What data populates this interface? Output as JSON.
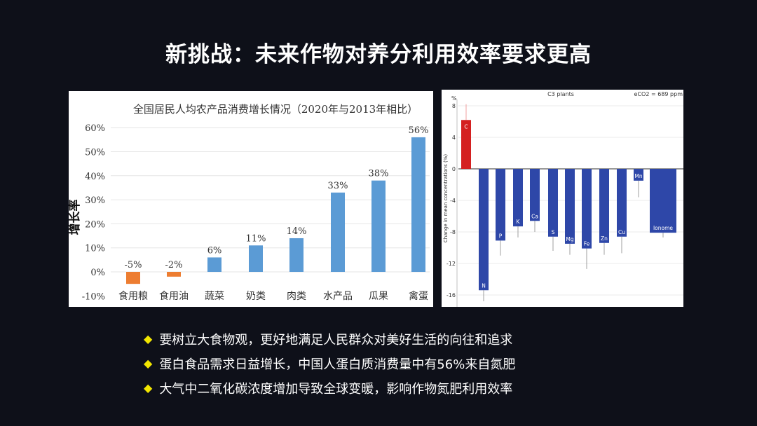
{
  "title": "新挑战：未来作物对养分利用效率要求更高",
  "chart_data": [
    {
      "type": "bar",
      "title": "全国居民人均农产品消费增长情况（2020年与2013年相比）",
      "xlabel": "",
      "ylabel": "增长率",
      "categories": [
        "食用粮",
        "食用油",
        "蔬菜",
        "奶类",
        "肉类",
        "水产品",
        "瓜果",
        "禽蛋"
      ],
      "values": [
        -5,
        -2,
        6,
        11,
        14,
        33,
        38,
        56
      ],
      "data_labels": [
        "-5%",
        "-2%",
        "6%",
        "11%",
        "14%",
        "33%",
        "38%",
        "56%"
      ],
      "ylim": [
        -10,
        60
      ],
      "yticks": [
        "-10%",
        "0%",
        "10%",
        "20%",
        "30%",
        "40%",
        "50%",
        "60%"
      ],
      "colors": {
        "positive": "#5b9bd5",
        "negative": "#ed7d31"
      },
      "grid": true
    },
    {
      "type": "bar",
      "title": "C3 plants",
      "annotation": "eCO2 = 689 ppm",
      "ylabel": "Change in mean concentrations (%)",
      "yunit": "%",
      "categories": [
        "C",
        "N",
        "P",
        "K",
        "Ca",
        "S",
        "Mg",
        "Fe",
        "Zn",
        "Cu",
        "Mn",
        "Ionome"
      ],
      "values": [
        6.2,
        -15.4,
        -9.1,
        -7.3,
        -6.6,
        -8.6,
        -9.5,
        -10.1,
        -9.4,
        -8.6,
        -1.5,
        -8.1
      ],
      "error_ends": [
        8.2,
        -16.8,
        -11.0,
        -8.7,
        -8.0,
        -10.4,
        -10.9,
        -12.7,
        -10.9,
        -10.7,
        -3.6,
        -8.7
      ],
      "ylim": [
        -17,
        8.5
      ],
      "yticks": [
        "8",
        "4",
        "0",
        "-4",
        "-8",
        "-12",
        "-16"
      ],
      "colors": {
        "positive": "#d42020",
        "negative": "#2e47a8"
      },
      "grid": true
    }
  ],
  "bullets": [
    "要树立大食物观，更好地满足人民群众对美好生活的向往和追求",
    "蛋白食品需求日益增长，中国人蛋白质消费量中有56%来自氮肥",
    "大气中二氧化碳浓度增加导致全球变暖，影响作物氮肥利用效率"
  ],
  "bullet_icon": "diamond-icon"
}
